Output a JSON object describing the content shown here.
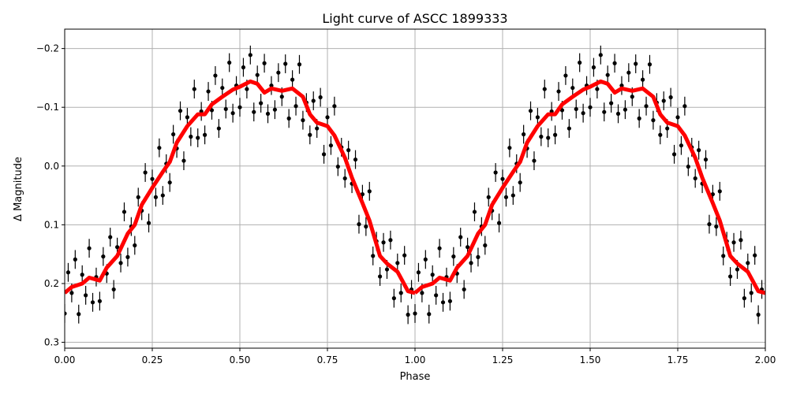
{
  "chart_data": {
    "type": "scatter",
    "title": "Light curve of ASCC 1899333",
    "xlabel": "Phase",
    "ylabel": "Δ Magnitude",
    "xlim": [
      0,
      2
    ],
    "ylim": [
      0.31,
      -0.233
    ],
    "y_inverted": true,
    "grid": true,
    "x_ticks": [
      "0.00",
      "0.25",
      "0.50",
      "0.75",
      "1.00",
      "1.25",
      "1.50",
      "1.75",
      "2.00"
    ],
    "x_tick_values": [
      0,
      0.25,
      0.5,
      0.75,
      1,
      1.25,
      1.5,
      1.75,
      2
    ],
    "y_ticks": [
      "−0.2",
      "−0.1",
      "0.0",
      "0.1",
      "0.2",
      "0.3"
    ],
    "y_tick_values": [
      -0.2,
      -0.1,
      0,
      0.1,
      0.2,
      0.3
    ],
    "colors": {
      "points": "#000000",
      "binned_curve": "#ff0000",
      "grid": "#b0b0b0"
    },
    "phase_repeats": 2,
    "points_error": 0.016,
    "points": [
      [
        0.0,
        0.251
      ],
      [
        0.01,
        0.181
      ],
      [
        0.02,
        0.216
      ],
      [
        0.03,
        0.159
      ],
      [
        0.04,
        0.252
      ],
      [
        0.05,
        0.185
      ],
      [
        0.06,
        0.22
      ],
      [
        0.07,
        0.14
      ],
      [
        0.08,
        0.232
      ],
      [
        0.09,
        0.189
      ],
      [
        0.1,
        0.23
      ],
      [
        0.11,
        0.154
      ],
      [
        0.12,
        0.183
      ],
      [
        0.13,
        0.121
      ],
      [
        0.14,
        0.21
      ],
      [
        0.15,
        0.138
      ],
      [
        0.16,
        0.165
      ],
      [
        0.17,
        0.078
      ],
      [
        0.18,
        0.155
      ],
      [
        0.19,
        0.103
      ],
      [
        0.2,
        0.135
      ],
      [
        0.21,
        0.053
      ],
      [
        0.22,
        0.076
      ],
      [
        0.23,
        0.011
      ],
      [
        0.24,
        0.097
      ],
      [
        0.25,
        0.022
      ],
      [
        0.26,
        0.053
      ],
      [
        0.27,
        -0.031
      ],
      [
        0.28,
        0.05
      ],
      [
        0.29,
        -0.004
      ],
      [
        0.3,
        0.028
      ],
      [
        0.31,
        -0.054
      ],
      [
        0.32,
        -0.03
      ],
      [
        0.33,
        -0.094
      ],
      [
        0.34,
        -0.009
      ],
      [
        0.35,
        -0.083
      ],
      [
        0.36,
        -0.05
      ],
      [
        0.37,
        -0.131
      ],
      [
        0.38,
        -0.048
      ],
      [
        0.39,
        -0.093
      ],
      [
        0.4,
        -0.053
      ],
      [
        0.41,
        -0.127
      ],
      [
        0.42,
        -0.095
      ],
      [
        0.43,
        -0.154
      ],
      [
        0.44,
        -0.064
      ],
      [
        0.45,
        -0.133
      ],
      [
        0.46,
        -0.097
      ],
      [
        0.47,
        -0.176
      ],
      [
        0.48,
        -0.09
      ],
      [
        0.49,
        -0.137
      ],
      [
        0.5,
        -0.1
      ],
      [
        0.51,
        -0.168
      ],
      [
        0.52,
        -0.131
      ],
      [
        0.53,
        -0.189
      ],
      [
        0.54,
        -0.092
      ],
      [
        0.55,
        -0.155
      ],
      [
        0.56,
        -0.107
      ],
      [
        0.57,
        -0.175
      ],
      [
        0.58,
        -0.089
      ],
      [
        0.59,
        -0.137
      ],
      [
        0.6,
        -0.096
      ],
      [
        0.61,
        -0.159
      ],
      [
        0.62,
        -0.118
      ],
      [
        0.63,
        -0.174
      ],
      [
        0.64,
        -0.081
      ],
      [
        0.65,
        -0.147
      ],
      [
        0.66,
        -0.102
      ],
      [
        0.67,
        -0.173
      ],
      [
        0.68,
        -0.078
      ],
      [
        0.69,
        -0.108
      ],
      [
        0.7,
        -0.053
      ],
      [
        0.71,
        -0.111
      ],
      [
        0.72,
        -0.064
      ],
      [
        0.73,
        -0.117
      ],
      [
        0.74,
        -0.02
      ],
      [
        0.75,
        -0.083
      ],
      [
        0.76,
        -0.035
      ],
      [
        0.77,
        -0.102
      ],
      [
        0.78,
        0.001
      ],
      [
        0.79,
        -0.032
      ],
      [
        0.8,
        0.021
      ],
      [
        0.81,
        -0.027
      ],
      [
        0.82,
        0.03
      ],
      [
        0.83,
        -0.011
      ],
      [
        0.84,
        0.099
      ],
      [
        0.85,
        0.048
      ],
      [
        0.86,
        0.103
      ],
      [
        0.87,
        0.043
      ],
      [
        0.88,
        0.153
      ],
      [
        0.89,
        0.128
      ],
      [
        0.9,
        0.188
      ],
      [
        0.91,
        0.13
      ],
      [
        0.92,
        0.176
      ],
      [
        0.93,
        0.126
      ],
      [
        0.94,
        0.225
      ],
      [
        0.95,
        0.165
      ],
      [
        0.96,
        0.216
      ],
      [
        0.97,
        0.152
      ],
      [
        0.98,
        0.253
      ],
      [
        0.99,
        0.21
      ]
    ],
    "binned_curve": [
      [
        0.0,
        0.216
      ],
      [
        0.02,
        0.206
      ],
      [
        0.05,
        0.2
      ],
      [
        0.07,
        0.19
      ],
      [
        0.1,
        0.195
      ],
      [
        0.12,
        0.173
      ],
      [
        0.15,
        0.153
      ],
      [
        0.18,
        0.115
      ],
      [
        0.2,
        0.1
      ],
      [
        0.22,
        0.066
      ],
      [
        0.25,
        0.037
      ],
      [
        0.28,
        0.01
      ],
      [
        0.3,
        -0.007
      ],
      [
        0.32,
        -0.04
      ],
      [
        0.35,
        -0.068
      ],
      [
        0.38,
        -0.088
      ],
      [
        0.4,
        -0.088
      ],
      [
        0.42,
        -0.105
      ],
      [
        0.45,
        -0.118
      ],
      [
        0.48,
        -0.13
      ],
      [
        0.5,
        -0.135
      ],
      [
        0.53,
        -0.144
      ],
      [
        0.55,
        -0.14
      ],
      [
        0.57,
        -0.125
      ],
      [
        0.59,
        -0.132
      ],
      [
        0.62,
        -0.128
      ],
      [
        0.65,
        -0.132
      ],
      [
        0.68,
        -0.118
      ],
      [
        0.7,
        -0.088
      ],
      [
        0.72,
        -0.074
      ],
      [
        0.75,
        -0.068
      ],
      [
        0.77,
        -0.052
      ],
      [
        0.8,
        -0.014
      ],
      [
        0.82,
        0.02
      ],
      [
        0.85,
        0.063
      ],
      [
        0.87,
        0.093
      ],
      [
        0.9,
        0.153
      ],
      [
        0.92,
        0.166
      ],
      [
        0.95,
        0.18
      ],
      [
        0.98,
        0.213
      ],
      [
        1.0,
        0.216
      ]
    ]
  }
}
